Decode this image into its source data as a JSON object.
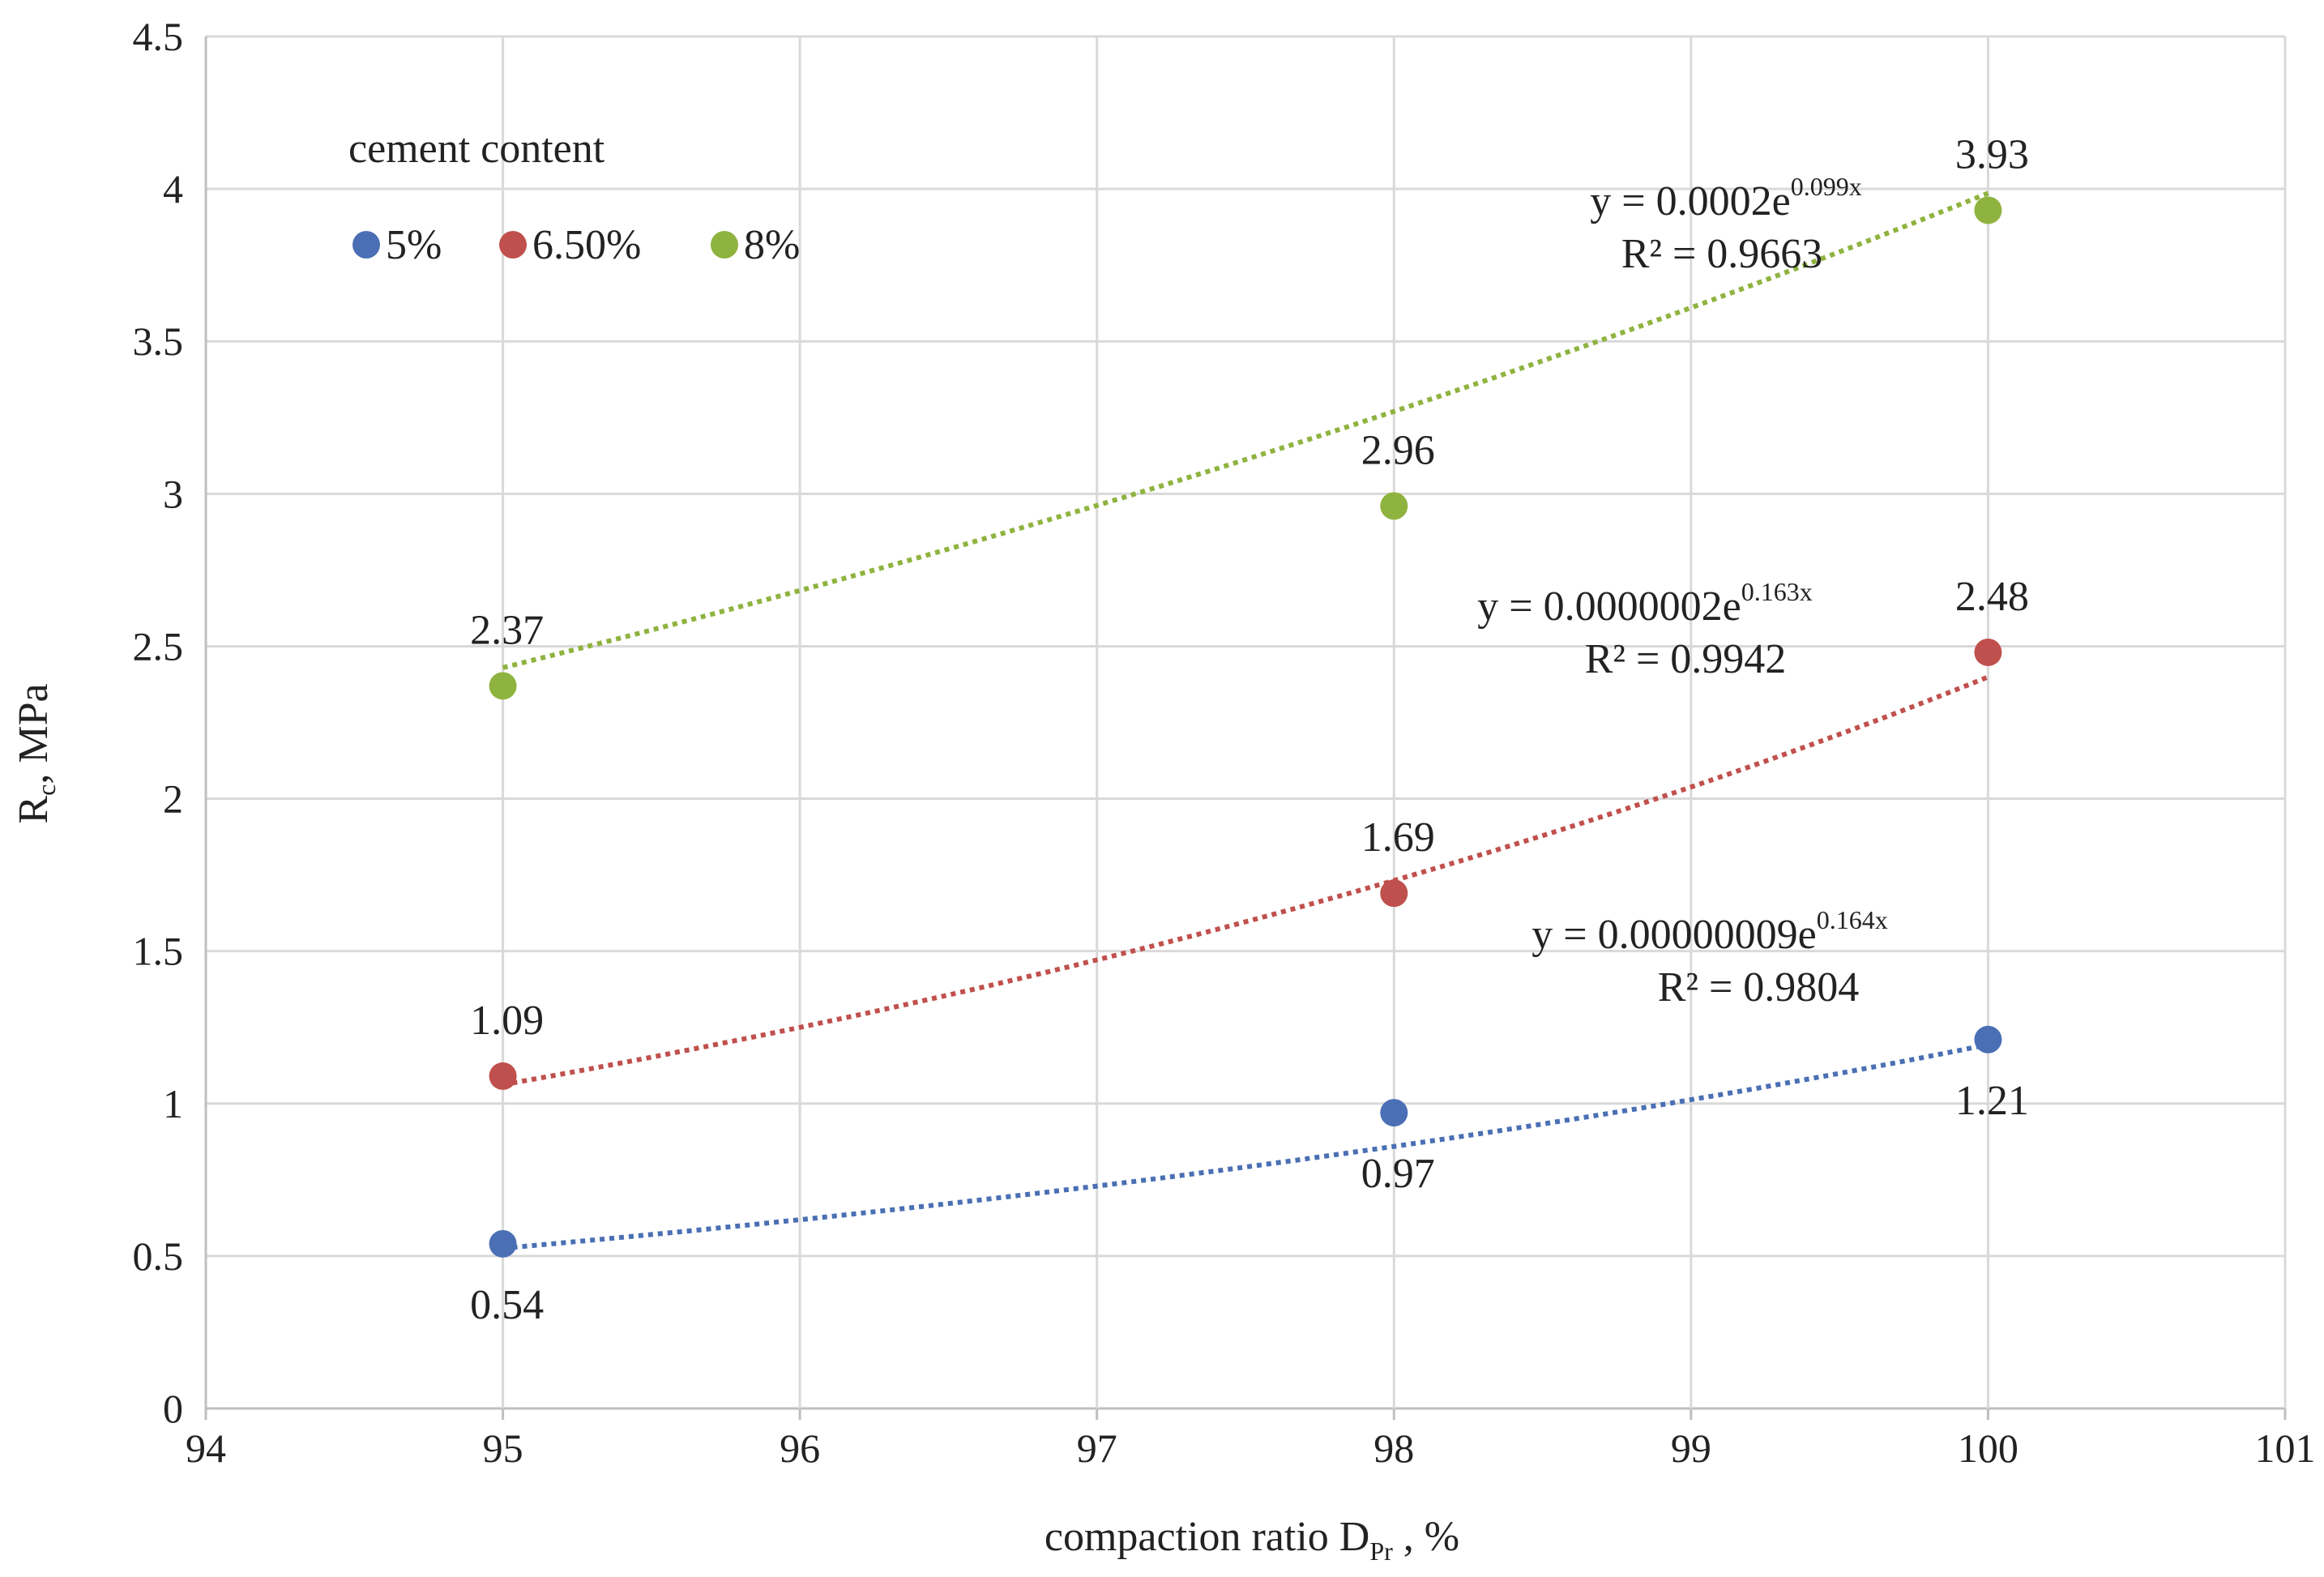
{
  "chart_data": {
    "type": "scatter",
    "title": "",
    "xlabel_main": "compaction ratio D",
    "xlabel_sub": "Pr",
    "xlabel_tail": " , %",
    "ylabel_main": "R",
    "ylabel_sub": "c",
    "ylabel_tail": ", MPa",
    "xlim": [
      94,
      101
    ],
    "ylim": [
      0,
      4.5
    ],
    "xticks": [
      94,
      95,
      96,
      97,
      98,
      99,
      100,
      101
    ],
    "yticks": [
      0,
      0.5,
      1,
      1.5,
      2,
      2.5,
      3,
      3.5,
      4,
      4.5
    ],
    "ytick_labels": [
      "0",
      "0.5",
      "1",
      "1.5",
      "2",
      "2.5",
      "3",
      "3.5",
      "4",
      "4.5"
    ],
    "legend_title": "cement content",
    "series": [
      {
        "name": "5%",
        "color": "#4a6fb4",
        "x": [
          95,
          98,
          100
        ],
        "y": [
          0.54,
          0.97,
          1.21
        ],
        "labels": [
          "0.54",
          "0.97",
          "1.21"
        ],
        "label_pos": [
          "below",
          "below",
          "below"
        ],
        "trend": {
          "a": 9e-08,
          "b": 0.164,
          "a_text": "0.00000009",
          "b_text": "0.164",
          "r2": "0.9804"
        }
      },
      {
        "name": "6.50%",
        "color": "#c0504d",
        "x": [
          95,
          98,
          100
        ],
        "y": [
          1.09,
          1.69,
          2.48
        ],
        "labels": [
          "1.09",
          "1.69",
          "2.48"
        ],
        "label_pos": [
          "above",
          "above",
          "above"
        ],
        "trend": {
          "a": 2e-07,
          "b": 0.163,
          "a_text": "0.0000002",
          "b_text": "0.163",
          "r2": "0.9942"
        }
      },
      {
        "name": "8%",
        "color": "#8fb33f",
        "x": [
          95,
          98,
          100
        ],
        "y": [
          2.37,
          2.96,
          3.93
        ],
        "labels": [
          "2.37",
          "2.96",
          "3.93"
        ],
        "label_pos": [
          "above",
          "above",
          "above"
        ],
        "trend": {
          "a": 0.0002,
          "b": 0.099,
          "a_text": "0.0002",
          "b_text": "0.099",
          "r2": "0.9663"
        }
      }
    ]
  }
}
